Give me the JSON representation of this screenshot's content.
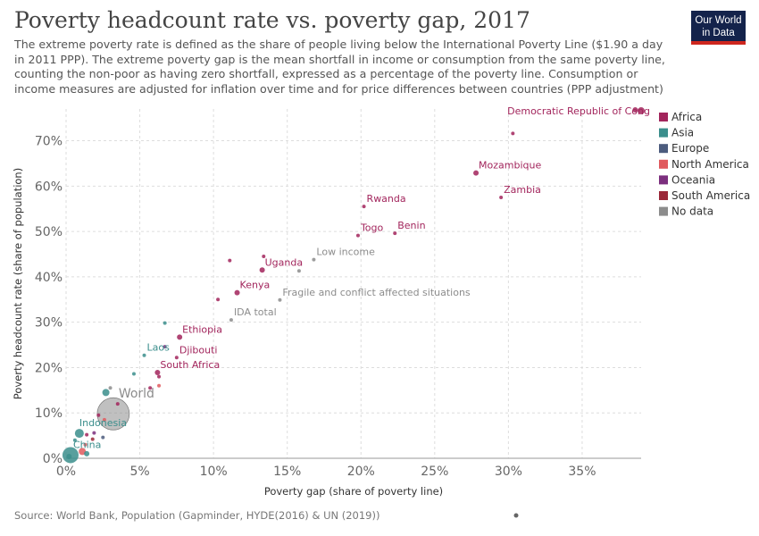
{
  "header": {
    "title": "Poverty headcount rate vs. poverty gap, 2017",
    "subtitle": "The extreme poverty rate is defined as the share of people living below the International Poverty Line ($1.90 a day in 2011 PPP). The extreme poverty gap is the mean shortfall in income or consumption from the same poverty line, counting the non-poor as having zero shortfall, expressed as a percentage of the poverty line. Consumption or income measures are adjusted for inflation over time and for price differences between countries (PPP adjustment)",
    "logo_line1": "Our World",
    "logo_line2": "in Data"
  },
  "footer": {
    "source": "Source: World Bank, Population (Gapminder, HYDE(2016) & UN (2019))"
  },
  "colors": {
    "Africa": "#a2255c",
    "Asia": "#3b8e8c",
    "Europe": "#4c5c7e",
    "North America": "#e05a5e",
    "Oceania": "#7c2f7e",
    "South America": "#9b2839",
    "No data": "#8c8c8c"
  },
  "chart_data": {
    "type": "scatter",
    "title": "Poverty headcount rate vs. poverty gap, 2017",
    "xlabel": "Poverty gap (share of poverty line)",
    "ylabel": "Poverty headcount rate (share of population)",
    "xlim": [
      0,
      39
    ],
    "ylim": [
      0,
      77
    ],
    "x_ticks": [
      0,
      5,
      10,
      15,
      20,
      25,
      30,
      35
    ],
    "x_tick_labels": [
      "0%",
      "5%",
      "10%",
      "15%",
      "20%",
      "25%",
      "30%",
      "35%"
    ],
    "y_ticks": [
      0,
      10,
      20,
      30,
      40,
      50,
      60,
      70
    ],
    "y_tick_labels": [
      "0%",
      "10%",
      "20%",
      "30%",
      "40%",
      "50%",
      "60%",
      "70%"
    ],
    "grid": true,
    "legend_position": "right",
    "legend": [
      "Africa",
      "Asia",
      "Europe",
      "North America",
      "Oceania",
      "South America",
      "No data"
    ],
    "points": [
      {
        "label": "Democratic Republic of Cong",
        "x": 39.0,
        "y": 76.6,
        "region": "Africa",
        "r": 4
      },
      {
        "label": "",
        "x": 38.6,
        "y": 76.8,
        "region": "Africa",
        "r": 3
      },
      {
        "label": "",
        "x": 30.3,
        "y": 71.6,
        "region": "Africa",
        "r": 2
      },
      {
        "label": "Mozambique",
        "x": 27.8,
        "y": 62.9,
        "region": "Africa",
        "r": 3
      },
      {
        "label": "Zambia",
        "x": 29.5,
        "y": 57.5,
        "region": "Africa",
        "r": 2
      },
      {
        "label": "Rwanda",
        "x": 20.2,
        "y": 55.5,
        "region": "Africa",
        "r": 2
      },
      {
        "label": "Togo",
        "x": 19.8,
        "y": 49.1,
        "region": "Africa",
        "r": 2
      },
      {
        "label": "Benin",
        "x": 22.3,
        "y": 49.6,
        "region": "Africa",
        "r": 2
      },
      {
        "label": "Low income",
        "x": 16.8,
        "y": 43.8,
        "region": "No data",
        "r": 2
      },
      {
        "label": "",
        "x": 15.8,
        "y": 41.3,
        "region": "No data",
        "r": 2
      },
      {
        "label": "Uganda",
        "x": 13.3,
        "y": 41.5,
        "region": "Africa",
        "r": 3
      },
      {
        "label": "",
        "x": 13.4,
        "y": 44.5,
        "region": "Africa",
        "r": 2
      },
      {
        "label": "",
        "x": 11.1,
        "y": 43.6,
        "region": "Africa",
        "r": 2
      },
      {
        "label": "Kenya",
        "x": 11.6,
        "y": 36.5,
        "region": "Africa",
        "r": 3
      },
      {
        "label": "",
        "x": 10.3,
        "y": 35.0,
        "region": "Africa",
        "r": 2
      },
      {
        "label": "Fragile and conflict affected situations",
        "x": 14.5,
        "y": 34.9,
        "region": "No data",
        "r": 2
      },
      {
        "label": "IDA total",
        "x": 11.2,
        "y": 30.5,
        "region": "No data",
        "r": 2
      },
      {
        "label": "",
        "x": 6.7,
        "y": 29.8,
        "region": "Asia",
        "r": 2
      },
      {
        "label": "Ethiopia",
        "x": 7.7,
        "y": 26.7,
        "region": "Africa",
        "r": 3
      },
      {
        "label": "",
        "x": 6.7,
        "y": 24.6,
        "region": "Oceania",
        "r": 2
      },
      {
        "label": "Laos",
        "x": 5.3,
        "y": 22.7,
        "region": "Asia",
        "r": 2
      },
      {
        "label": "Djibouti",
        "x": 7.5,
        "y": 22.2,
        "region": "Africa",
        "r": 2
      },
      {
        "label": "",
        "x": 4.6,
        "y": 18.6,
        "region": "Asia",
        "r": 2
      },
      {
        "label": "South Africa",
        "x": 6.2,
        "y": 18.9,
        "region": "Africa",
        "r": 3
      },
      {
        "label": "",
        "x": 6.3,
        "y": 18.0,
        "region": "Africa",
        "r": 2
      },
      {
        "label": "",
        "x": 6.3,
        "y": 16.0,
        "region": "North America",
        "r": 2
      },
      {
        "label": "",
        "x": 5.7,
        "y": 15.5,
        "region": "Africa",
        "r": 2
      },
      {
        "label": "",
        "x": 3.0,
        "y": 15.5,
        "region": "No data",
        "r": 2
      },
      {
        "label": "",
        "x": 2.7,
        "y": 14.5,
        "region": "Asia",
        "r": 4
      },
      {
        "label": "World",
        "x": 3.2,
        "y": 9.8,
        "region": "No data",
        "r": 18
      },
      {
        "label": "",
        "x": 3.5,
        "y": 12.0,
        "region": "Africa",
        "r": 2
      },
      {
        "label": "",
        "x": 2.2,
        "y": 9.5,
        "region": "Africa",
        "r": 2
      },
      {
        "label": "",
        "x": 2.6,
        "y": 8.5,
        "region": "North America",
        "r": 2
      },
      {
        "label": "Indonesia",
        "x": 0.9,
        "y": 5.5,
        "region": "Asia",
        "r": 5
      },
      {
        "label": "",
        "x": 1.4,
        "y": 5.2,
        "region": "Africa",
        "r": 2
      },
      {
        "label": "",
        "x": 1.9,
        "y": 5.6,
        "region": "Oceania",
        "r": 2
      },
      {
        "label": "",
        "x": 1.8,
        "y": 4.2,
        "region": "South America",
        "r": 2
      },
      {
        "label": "",
        "x": 2.5,
        "y": 4.6,
        "region": "Europe",
        "r": 2
      },
      {
        "label": "",
        "x": 1.3,
        "y": 3.0,
        "region": "North America",
        "r": 2
      },
      {
        "label": "",
        "x": 0.6,
        "y": 4.0,
        "region": "Asia",
        "r": 2
      },
      {
        "label": "",
        "x": 1.1,
        "y": 1.5,
        "region": "North America",
        "r": 4
      },
      {
        "label": "",
        "x": 1.4,
        "y": 1.0,
        "region": "Asia",
        "r": 3
      },
      {
        "label": "China",
        "x": 0.3,
        "y": 0.7,
        "region": "Asia",
        "r": 9
      },
      {
        "label": "",
        "x": 0.2,
        "y": 0.4,
        "region": "Asia",
        "r": 3
      }
    ]
  }
}
